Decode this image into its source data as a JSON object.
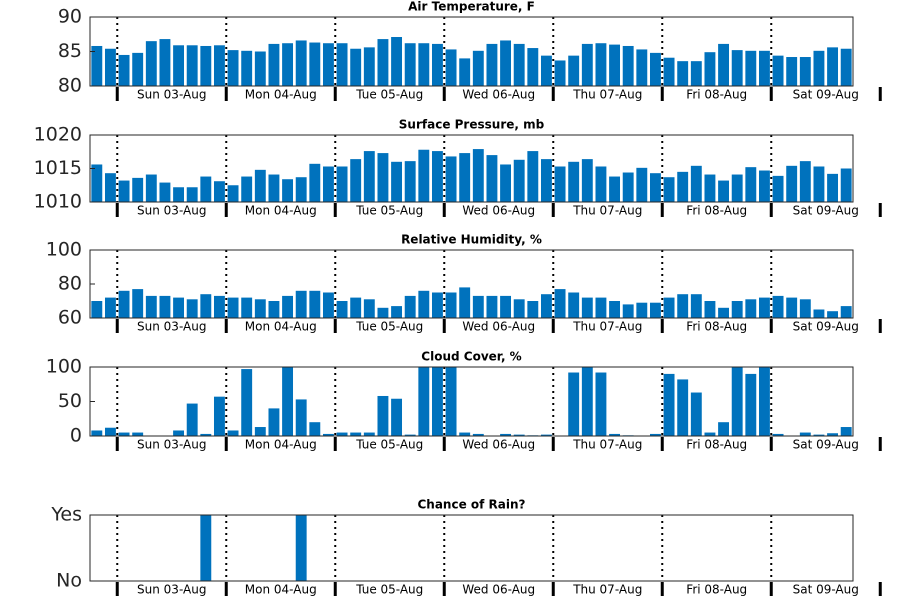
{
  "chart_data": [
    {
      "type": "bar",
      "title": "Air Temperature, F",
      "color": "#0072bd",
      "values": [
        85.8,
        85.4,
        84.5,
        84.8,
        86.5,
        86.8,
        85.9,
        85.9,
        85.8,
        85.9,
        85.2,
        85.1,
        85.0,
        86.1,
        86.2,
        86.6,
        86.3,
        86.2,
        86.2,
        85.4,
        85.6,
        86.8,
        87.1,
        86.2,
        86.2,
        86.1,
        85.3,
        84.0,
        85.1,
        86.1,
        86.6,
        86.1,
        85.5,
        84.4,
        83.7,
        84.4,
        86.1,
        86.2,
        86.0,
        85.8,
        85.3,
        84.8,
        84.1,
        83.6,
        83.6,
        84.9,
        86.1,
        85.2,
        85.1,
        85.1,
        84.4,
        84.2,
        84.2,
        85.1,
        85.6,
        85.4
      ],
      "ylim": [
        80,
        90
      ],
      "yticks": [
        80,
        85,
        90
      ],
      "xlim": [
        0,
        56
      ],
      "xticks": [
        2,
        10,
        18,
        26,
        34,
        42,
        50,
        58
      ],
      "xlabels": [
        {
          "value": 6,
          "label": "Sun 03-Aug"
        },
        {
          "value": 14,
          "label": "Mon 04-Aug"
        },
        {
          "value": 22,
          "label": "Tue 05-Aug"
        },
        {
          "value": 30,
          "label": "Wed 06-Aug"
        },
        {
          "value": 38,
          "label": "Thu 07-Aug"
        },
        {
          "value": 46,
          "label": "Fri 08-Aug"
        },
        {
          "value": 54,
          "label": "Sat 09-Aug"
        }
      ]
    },
    {
      "type": "bar",
      "title": "Surface Pressure, mb",
      "color": "#0072bd",
      "values": [
        1015.6,
        1014.3,
        1013.2,
        1013.6,
        1014.1,
        1012.9,
        1012.2,
        1012.2,
        1013.8,
        1013.1,
        1012.5,
        1013.8,
        1014.8,
        1014.1,
        1013.4,
        1013.7,
        1015.7,
        1015.3,
        1015.3,
        1016.4,
        1017.6,
        1017.3,
        1016.0,
        1016.1,
        1017.8,
        1017.6,
        1016.8,
        1017.3,
        1017.9,
        1017.0,
        1015.6,
        1016.3,
        1017.6,
        1016.4,
        1015.3,
        1016.0,
        1016.4,
        1015.3,
        1013.8,
        1014.4,
        1015.1,
        1014.3,
        1013.7,
        1014.5,
        1015.4,
        1014.1,
        1013.2,
        1014.1,
        1015.2,
        1014.7,
        1013.9,
        1015.4,
        1016.1,
        1015.3,
        1014.2,
        1015.0
      ],
      "ylim": [
        1010,
        1020
      ],
      "yticks": [
        1010,
        1015,
        1020
      ],
      "xlim": [
        0,
        56
      ],
      "xticks": [
        2,
        10,
        18,
        26,
        34,
        42,
        50,
        58
      ],
      "xlabels": [
        {
          "value": 6,
          "label": "Sun 03-Aug"
        },
        {
          "value": 14,
          "label": "Mon 04-Aug"
        },
        {
          "value": 22,
          "label": "Tue 05-Aug"
        },
        {
          "value": 30,
          "label": "Wed 06-Aug"
        },
        {
          "value": 38,
          "label": "Thu 07-Aug"
        },
        {
          "value": 46,
          "label": "Fri 08-Aug"
        },
        {
          "value": 54,
          "label": "Sat 09-Aug"
        }
      ]
    },
    {
      "type": "bar",
      "title": "Relative Humidity, %",
      "color": "#0072bd",
      "values": [
        70,
        72,
        76,
        77,
        73,
        73,
        72,
        71,
        74,
        73,
        72,
        72,
        71,
        70,
        73,
        76,
        76,
        75,
        70,
        72,
        71,
        66,
        67,
        73,
        76,
        75,
        75,
        78,
        73,
        73,
        73,
        71,
        70,
        74,
        77,
        75,
        72,
        72,
        70,
        68,
        69,
        69,
        72,
        74,
        74,
        70,
        66,
        70,
        71,
        72,
        73,
        72,
        71,
        65,
        64,
        67
      ],
      "ylim": [
        60,
        100
      ],
      "yticks": [
        60,
        80,
        100
      ],
      "xlim": [
        0,
        56
      ],
      "xticks": [
        2,
        10,
        18,
        26,
        34,
        42,
        50,
        58
      ],
      "xlabels": [
        {
          "value": 6,
          "label": "Sun 03-Aug"
        },
        {
          "value": 14,
          "label": "Mon 04-Aug"
        },
        {
          "value": 22,
          "label": "Tue 05-Aug"
        },
        {
          "value": 30,
          "label": "Wed 06-Aug"
        },
        {
          "value": 38,
          "label": "Thu 07-Aug"
        },
        {
          "value": 46,
          "label": "Fri 08-Aug"
        },
        {
          "value": 54,
          "label": "Sat 09-Aug"
        }
      ]
    },
    {
      "type": "bar",
      "title": "Cloud Cover, %",
      "color": "#0072bd",
      "values": [
        8,
        12,
        5,
        5,
        0,
        0,
        8,
        47,
        3,
        57,
        8,
        97,
        13,
        40,
        100,
        53,
        20,
        3,
        5,
        5,
        5,
        58,
        54,
        2,
        100,
        100,
        100,
        5,
        3,
        0,
        3,
        2,
        1,
        2,
        0,
        92,
        100,
        92,
        3,
        1,
        0,
        3,
        90,
        82,
        63,
        5,
        20,
        100,
        90,
        100,
        3,
        0,
        5,
        2,
        4,
        13
      ],
      "ylim": [
        0,
        100
      ],
      "yticks": [
        0,
        50,
        100
      ],
      "xlim": [
        0,
        56
      ],
      "xticks": [
        2,
        10,
        18,
        26,
        34,
        42,
        50,
        58
      ],
      "xlabels": [
        {
          "value": 6,
          "label": "Sun 03-Aug"
        },
        {
          "value": 14,
          "label": "Mon 04-Aug"
        },
        {
          "value": 22,
          "label": "Tue 05-Aug"
        },
        {
          "value": 30,
          "label": "Wed 06-Aug"
        },
        {
          "value": 38,
          "label": "Thu 07-Aug"
        },
        {
          "value": 46,
          "label": "Fri 08-Aug"
        },
        {
          "value": 54,
          "label": "Sat 09-Aug"
        }
      ]
    },
    {
      "type": "bar",
      "title": "Chance of Rain?",
      "color": "#0072bd",
      "values": [
        0,
        0,
        0,
        0,
        0,
        0,
        0,
        0,
        1,
        0,
        0,
        0,
        0,
        0,
        0,
        1,
        0,
        0,
        0,
        0,
        0,
        0,
        0,
        0,
        0,
        0,
        0,
        0,
        0,
        0,
        0,
        0,
        0,
        0,
        0,
        0,
        0,
        0,
        0,
        0,
        0,
        0,
        0,
        0,
        0,
        0,
        0,
        0,
        0,
        0,
        0,
        0,
        0,
        0,
        0,
        0
      ],
      "ylim": [
        0,
        1
      ],
      "yticks": [
        {
          "value": 0,
          "label": "No"
        },
        {
          "value": 1,
          "label": "Yes"
        }
      ],
      "xlim": [
        0,
        56
      ],
      "xticks": [
        2,
        10,
        18,
        26,
        34,
        42,
        50,
        58
      ],
      "xlabels": [
        {
          "value": 6,
          "label": "Sun 03-Aug"
        },
        {
          "value": 14,
          "label": "Mon 04-Aug"
        },
        {
          "value": 22,
          "label": "Tue 05-Aug"
        },
        {
          "value": 30,
          "label": "Wed 06-Aug"
        },
        {
          "value": 38,
          "label": "Thu 07-Aug"
        },
        {
          "value": 46,
          "label": "Fri 08-Aug"
        },
        {
          "value": 54,
          "label": "Sat 09-Aug"
        }
      ]
    }
  ]
}
